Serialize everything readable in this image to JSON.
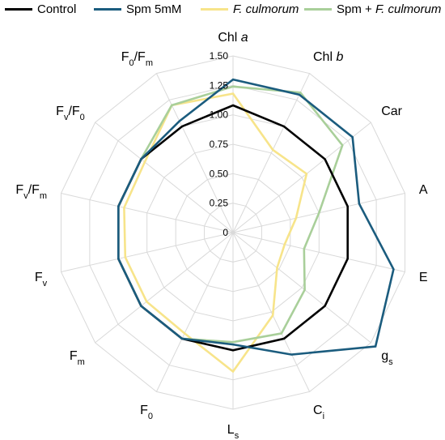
{
  "legend": {
    "items": [
      {
        "label": "Control",
        "color": "#000000"
      },
      {
        "label": "Spm 5mM",
        "color": "#1b5c7e"
      },
      {
        "label_prefix": "",
        "label_italic": "F. culmorum",
        "color": "#f7e48a"
      },
      {
        "label_prefix": "Spm + ",
        "label_italic": "F. culmorum",
        "color": "#a9cf9a"
      }
    ]
  },
  "chart_data": {
    "type": "radar",
    "axes": [
      {
        "main": "Chl",
        "ital": "a",
        "sub": ""
      },
      {
        "main": "Chl",
        "ital": "b",
        "sub": ""
      },
      {
        "main": "Car",
        "ital": "",
        "sub": ""
      },
      {
        "main": "A",
        "ital": "",
        "sub": ""
      },
      {
        "main": "E",
        "ital": "",
        "sub": ""
      },
      {
        "main": "g",
        "ital": "",
        "sub": "s"
      },
      {
        "main": "C",
        "ital": "",
        "sub": "i"
      },
      {
        "main": "L",
        "ital": "",
        "sub": "s"
      },
      {
        "main": "F",
        "ital": "",
        "sub": "0"
      },
      {
        "main": "F",
        "ital": "",
        "sub": "m"
      },
      {
        "main": "F",
        "ital": "",
        "sub": "v"
      },
      {
        "main": "F",
        "ital": "",
        "sub": "v",
        "tail": "/F",
        "sub2": "m"
      },
      {
        "main": "F",
        "ital": "",
        "sub": "v",
        "tail": "/F",
        "sub2": "0"
      },
      {
        "main": "F",
        "ital": "",
        "sub": "0",
        "tail": "/F",
        "sub2": "m"
      }
    ],
    "rticks": [
      "0",
      "0.25",
      "0.50",
      "0.75",
      "1.00",
      "1.25",
      "1.50"
    ],
    "rmax": 1.5,
    "grid_levels": 6,
    "series": [
      {
        "name": "Control",
        "color": "#000000",
        "values": [
          1.08,
          1.0,
          1.0,
          1.0,
          1.0,
          1.0,
          1.0,
          1.0,
          1.0,
          1.0,
          1.0,
          1.0,
          1.0,
          1.0
        ]
      },
      {
        "name": "Spm 5mM",
        "color": "#1b5c7e",
        "values": [
          1.3,
          1.3,
          1.3,
          1.1,
          1.4,
          1.55,
          1.15,
          0.95,
          1.0,
          1.0,
          1.0,
          1.0,
          1.0,
          1.05
        ]
      },
      {
        "name": "F. culmorum",
        "color": "#f7e48a",
        "values": [
          1.18,
          0.78,
          0.8,
          0.55,
          0.45,
          0.48,
          0.78,
          1.18,
          0.95,
          0.94,
          0.94,
          0.95,
          0.96,
          1.2
        ]
      },
      {
        "name": "Spm + F. culmorum",
        "color": "#a9cf9a",
        "values": [
          1.24,
          1.32,
          1.19,
          0.75,
          0.62,
          0.78,
          0.95,
          0.93,
          1.0,
          1.0,
          1.0,
          1.0,
          1.0,
          1.2
        ]
      }
    ]
  }
}
